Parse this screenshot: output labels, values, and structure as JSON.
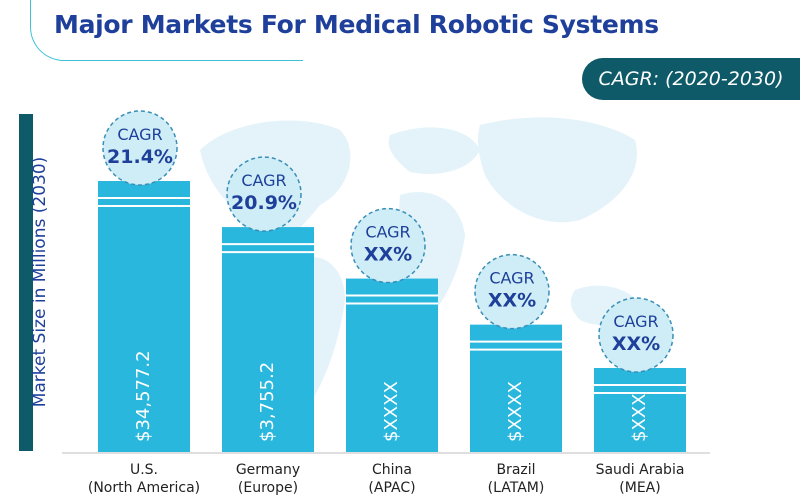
{
  "title": "Major Markets For Medical Robotic Systems",
  "badge": "CAGR: (2020-2030)",
  "colors": {
    "title": "#1e3f9a",
    "bar": "#29b7dd",
    "badge_bg": "#0f5a68",
    "bubble_fill": "#cfedf6",
    "bubble_border": "#3a8fb7",
    "map": "#e4f3fa"
  },
  "chart_data": {
    "type": "bar",
    "ylabel": "Market Size in Millions (2030)",
    "categories": [
      [
        "U.S.",
        "(North America)"
      ],
      [
        "Germany",
        "(Europe)"
      ],
      [
        "China",
        "(APAC)"
      ],
      [
        "Brazil",
        "(LATAM)"
      ],
      [
        "Saudi Arabia",
        "(MEA)"
      ]
    ],
    "value_labels": [
      "$34,577.2",
      "$3,755.2",
      "$XXXX",
      "$XXXX",
      "$XXX"
    ],
    "relative_heights": [
      1.0,
      0.83,
      0.64,
      0.47,
      0.31
    ],
    "cagr_label": "CAGR",
    "cagr_values": [
      "21.4%",
      "20.9%",
      "XX%",
      "XX%",
      "XX%"
    ]
  }
}
